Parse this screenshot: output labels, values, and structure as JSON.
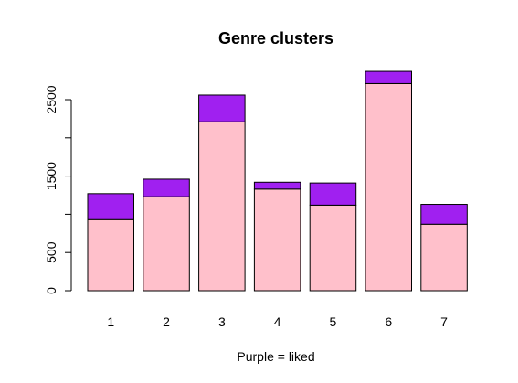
{
  "chart_data": {
    "type": "bar",
    "stacked": true,
    "title": "Genre clusters",
    "xlabel": "Purple = liked",
    "ylabel": "",
    "categories": [
      "1",
      "2",
      "3",
      "4",
      "5",
      "6",
      "7"
    ],
    "ylim": [
      0,
      2900
    ],
    "yticks": [
      0,
      500,
      1500,
      2500
    ],
    "series": [
      {
        "values": [
          930,
          1230,
          2210,
          1330,
          1120,
          2710,
          870
        ],
        "color": "#ffc0cb"
      },
      {
        "values": [
          340,
          230,
          350,
          90,
          290,
          160,
          260
        ],
        "color": "#a020f0"
      }
    ],
    "grid": false,
    "legend": "none"
  }
}
